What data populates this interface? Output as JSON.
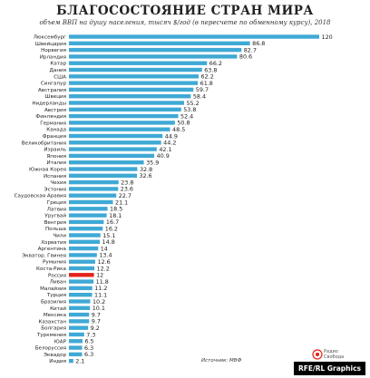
{
  "chart_data": {
    "type": "bar",
    "orientation": "horizontal",
    "title": "БЛАГОСОСТОЯНИЕ СТРАН МИРА",
    "subtitle": "объем ВВП на душу населения, тысяч $/год (в пересчете по обменному курсу), 2018",
    "categories": [
      "Люксембург",
      "Швейцария",
      "Норвегия",
      "Ирландия",
      "Катар",
      "Дания",
      "США",
      "Сингапур",
      "Австралия",
      "Швеция",
      "Нидерланды",
      "Австрия",
      "Финляндия",
      "Германия",
      "Канада",
      "Франция",
      "Великобритания",
      "Израиль",
      "Япония",
      "Италия",
      "Южная Корея",
      "Испания",
      "Чехия",
      "Эстония",
      "Саудовская Аравия",
      "Греция",
      "Латвия",
      "Уругвай",
      "Венгрия",
      "Польша",
      "Чили",
      "Хорватия",
      "Аргентина",
      "Экватор. Гвинея",
      "Румыния",
      "Коста-Рика",
      "Россия",
      "Ливан",
      "Малайзия",
      "Турция",
      "Бразилия",
      "Китай",
      "Мексика",
      "Казахстан",
      "Болгария",
      "Туркмения",
      "ЮАР",
      "Белоруссия",
      "Эквадор",
      "Индия"
    ],
    "values": [
      120,
      86.8,
      82.7,
      80.6,
      66.2,
      63.8,
      62.2,
      61.8,
      59.7,
      58.4,
      55.2,
      53.8,
      52.4,
      50.8,
      48.5,
      44.9,
      44.2,
      42.1,
      40.9,
      35.9,
      32.8,
      32.6,
      23.8,
      23.6,
      22.7,
      21.1,
      18.5,
      18.1,
      16.7,
      16.2,
      15.1,
      14.8,
      14,
      13.4,
      12.6,
      12.2,
      12,
      11.8,
      11.2,
      11.1,
      10.2,
      10.1,
      9.7,
      9.7,
      9.2,
      7.3,
      6.5,
      6.3,
      6.3,
      2.1
    ],
    "value_labels": [
      "120",
      "86.8",
      "82.7",
      "80.6",
      "66.2",
      "63.8",
      "62.2",
      "61.8",
      "59.7",
      "58.4",
      "55.2",
      "53.8",
      "52.4",
      "50.8",
      "48.5",
      "44.9",
      "44.2",
      "42.1",
      "40.9",
      "35.9",
      "32.8",
      "32.6",
      "23.8",
      "23.6",
      "22.7",
      "21.1",
      "18.5",
      "18.1",
      "16.7",
      "16.2",
      "15.1",
      "14.8",
      "14",
      "13.4",
      "12.6",
      "12.2",
      "12",
      "11.8",
      "11.2",
      "11.1",
      "10.2",
      "10.1",
      "9.7",
      "9.7",
      "9.2",
      "7.3",
      "6.5",
      "6.3",
      "6.3",
      "2.1"
    ],
    "highlight_index": 36,
    "xlim": [
      0,
      120
    ],
    "grid": false,
    "colors": {
      "bar": "#3fa9d5",
      "highlight": "#e2231a",
      "highlight_text": "#e2231a"
    }
  },
  "source": "Источник: МВФ",
  "logo_text": [
    "Радио",
    "Свобода"
  ],
  "brand": "RFE/RL Graphics"
}
